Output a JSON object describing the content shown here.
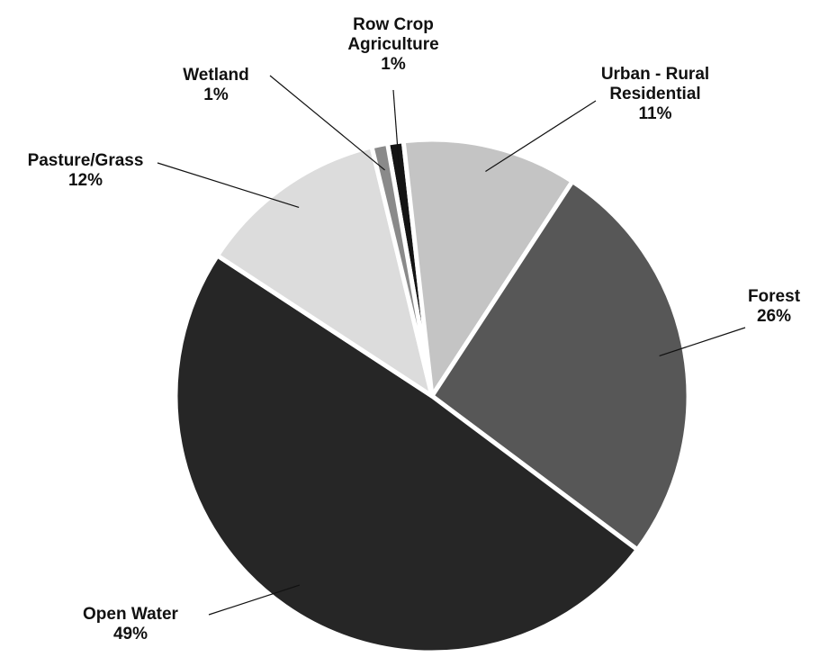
{
  "chart_data": {
    "type": "pie",
    "categories": [
      "Row Crop Agriculture",
      "Urban - Rural Residential",
      "Forest",
      "Open Water",
      "Pasture/Grass",
      "Wetland"
    ],
    "values": [
      1,
      11,
      26,
      49,
      12,
      1
    ],
    "value_labels": [
      "1%",
      "11%",
      "26%",
      "49%",
      "12%",
      "1%"
    ],
    "colors": [
      "#141414",
      "#c4c4c4",
      "#575757",
      "#262626",
      "#dcdcdc",
      "#8a8a8a"
    ]
  }
}
